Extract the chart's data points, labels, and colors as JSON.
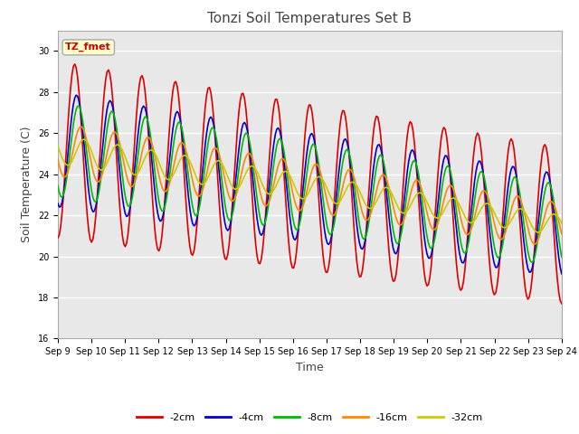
{
  "title": "Tonzi Soil Temperatures Set B",
  "xlabel": "Time",
  "ylabel": "Soil Temperature (C)",
  "ylim": [
    16,
    31
  ],
  "yticks": [
    16,
    18,
    20,
    22,
    24,
    26,
    28,
    30
  ],
  "x_tick_labels": [
    "Sep 9",
    "Sep 10",
    "Sep 11",
    "Sep 12",
    "Sep 13",
    "Sep 14",
    "Sep 15",
    "Sep 16",
    "Sep 17",
    "Sep 18",
    "Sep 19",
    "Sep 20",
    "Sep 21",
    "Sep 22",
    "Sep 23",
    "Sep 24"
  ],
  "series": {
    "-2cm": {
      "color": "#dd0000",
      "lw": 1.2
    },
    "-4cm": {
      "color": "#0000cc",
      "lw": 1.2
    },
    "-8cm": {
      "color": "#00bb00",
      "lw": 1.2
    },
    "-16cm": {
      "color": "#ff8800",
      "lw": 1.2
    },
    "-32cm": {
      "color": "#cccc00",
      "lw": 1.2
    }
  },
  "legend_label": "TZ_fmet",
  "legend_box_facecolor": "#ffffcc",
  "legend_text_color": "#cc0000",
  "legend_box_edgecolor": "#aaaaaa",
  "fig_facecolor": "#ffffff",
  "plot_bg_color": "#e8e8e8",
  "grid_color": "#ffffff",
  "figsize": [
    6.4,
    4.8
  ],
  "dpi": 100,
  "title_fontsize": 11,
  "tick_fontsize": 7,
  "label_fontsize": 9
}
